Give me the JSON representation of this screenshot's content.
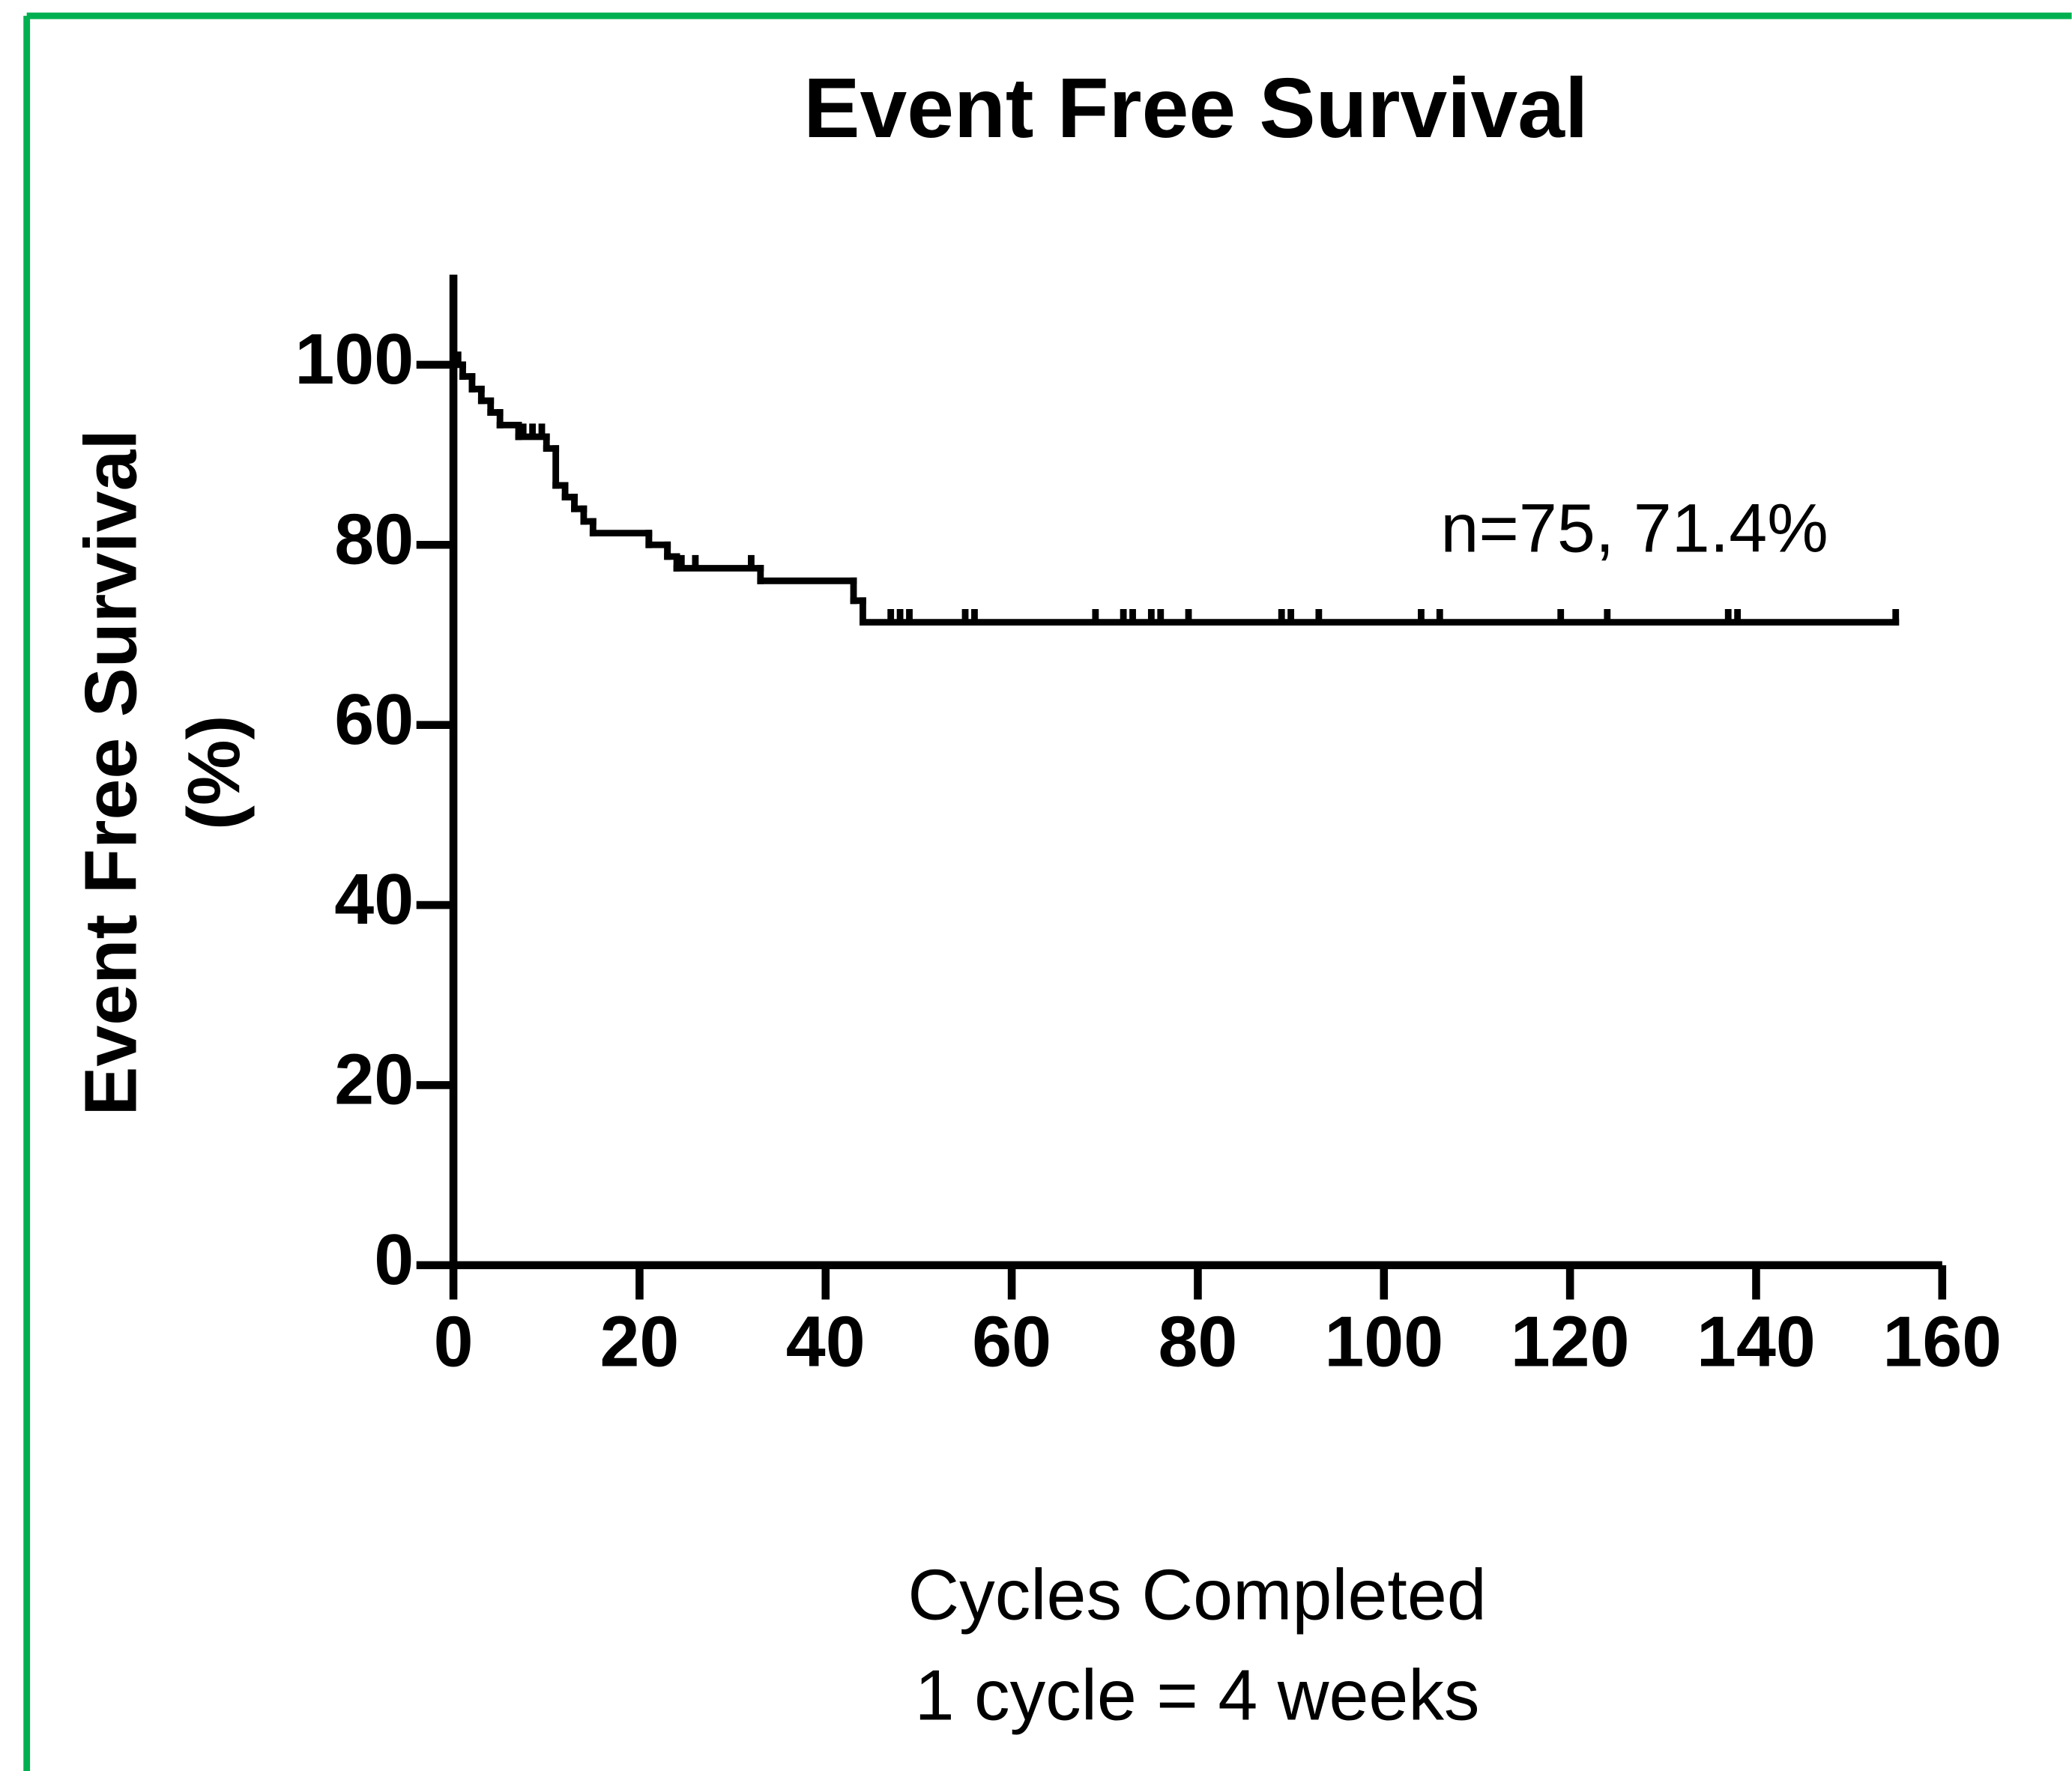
{
  "chart_data": {
    "type": "step",
    "title": "Event Free Survival",
    "xlabel": [
      "Cycles Completed",
      "1 cycle = 4 weeks"
    ],
    "ylabel": [
      "Event Free Survival",
      "(%)"
    ],
    "annotation": "n=75, 71.4%",
    "color": "#000000",
    "x": [
      0,
      1,
      2,
      3,
      4,
      5,
      7,
      10,
      11,
      12,
      13,
      14,
      15,
      21,
      23,
      24,
      33,
      43,
      44,
      155
    ],
    "values": [
      100,
      98.7,
      97.3,
      96,
      94.7,
      93.3,
      92,
      90.7,
      86.6,
      85.3,
      84,
      82.6,
      81.3,
      80,
      78.7,
      77.4,
      76,
      73.8,
      71.4,
      71.4
    ],
    "censored": {
      "x": [
        0.5,
        7.5,
        8.5,
        9.5,
        21,
        23,
        24.5,
        26,
        32,
        47,
        48,
        49,
        55,
        56,
        69,
        72,
        73,
        75,
        76,
        79,
        89,
        90,
        93,
        104,
        106,
        119,
        124,
        137,
        138,
        155
      ],
      "values": [
        100,
        92,
        92,
        92,
        80,
        78.7,
        77.4,
        77.4,
        77.4,
        71.4,
        71.4,
        71.4,
        71.4,
        71.4,
        71.4,
        71.4,
        71.4,
        71.4,
        71.4,
        71.4,
        71.4,
        71.4,
        71.4,
        71.4,
        71.4,
        71.4,
        71.4,
        71.4,
        71.4,
        71.4
      ]
    },
    "xlim": [
      0,
      160
    ],
    "xticks": [
      0,
      20,
      40,
      60,
      80,
      100,
      120,
      140,
      160
    ],
    "ylim": [
      0,
      110
    ],
    "yticks": [
      0,
      20,
      40,
      60,
      80,
      100
    ],
    "grid": false
  }
}
